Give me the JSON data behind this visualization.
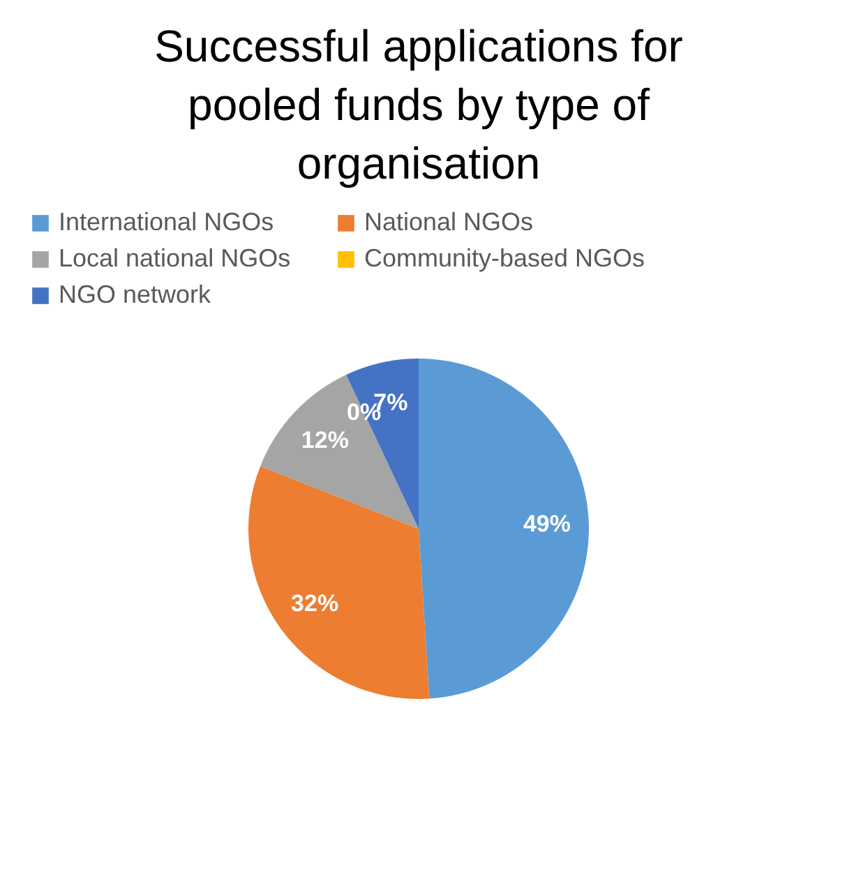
{
  "chart_data": {
    "type": "pie",
    "title": "Successful applications for pooled funds by type of organisation",
    "categories": [
      "International NGOs",
      "National NGOs",
      "Local national NGOs",
      "Community-based NGOs",
      "NGO network"
    ],
    "values": [
      49,
      32,
      12,
      0,
      7
    ],
    "colors": [
      "#5b9bd5",
      "#ed7d31",
      "#a5a5a5",
      "#ffc000",
      "#4472c4"
    ],
    "value_labels": [
      "49%",
      "32%",
      "12%",
      "0%",
      "7%"
    ],
    "legend": "top"
  }
}
